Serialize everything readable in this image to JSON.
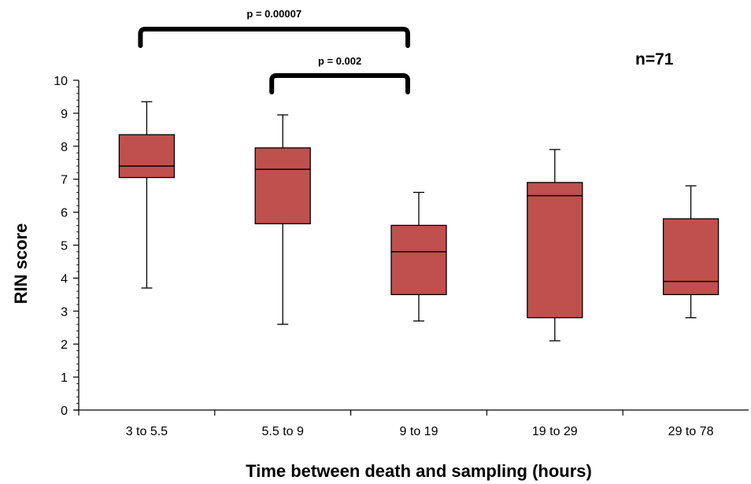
{
  "chart_data": {
    "type": "boxplot",
    "xlabel": "Time between death and sampling (hours)",
    "ylabel": "RIN score",
    "ylim": [
      0,
      10
    ],
    "yticks": [
      0,
      1,
      2,
      3,
      4,
      5,
      6,
      7,
      8,
      9,
      10
    ],
    "categories": [
      "3 to 5.5",
      "5.5 to 9",
      "9 to 19",
      "19 to 29",
      "29 to 78"
    ],
    "boxes": [
      {
        "category": "3 to 5.5",
        "min": 3.7,
        "q1": 7.05,
        "median": 7.4,
        "q3": 8.35,
        "max": 9.35
      },
      {
        "category": "5.5 to 9",
        "min": 2.6,
        "q1": 5.65,
        "median": 7.3,
        "q3": 7.95,
        "max": 8.95
      },
      {
        "category": "9 to 19",
        "min": 2.7,
        "q1": 3.5,
        "median": 4.8,
        "q3": 5.6,
        "max": 6.6
      },
      {
        "category": "19 to 29",
        "min": 2.1,
        "q1": 2.8,
        "median": 6.5,
        "q3": 6.9,
        "max": 7.9
      },
      {
        "category": "29 to 78",
        "min": 2.8,
        "q1": 3.5,
        "median": 3.9,
        "q3": 5.8,
        "max": 6.8
      }
    ],
    "box_color": "#c0504d",
    "sample_size_label": "n=71",
    "significance": [
      {
        "label": "p = 0.00007",
        "from": "3 to 5.5",
        "to": "9 to 19"
      },
      {
        "label": "p = 0.002",
        "from": "5.5 to 9",
        "to": "9 to 19"
      }
    ]
  }
}
